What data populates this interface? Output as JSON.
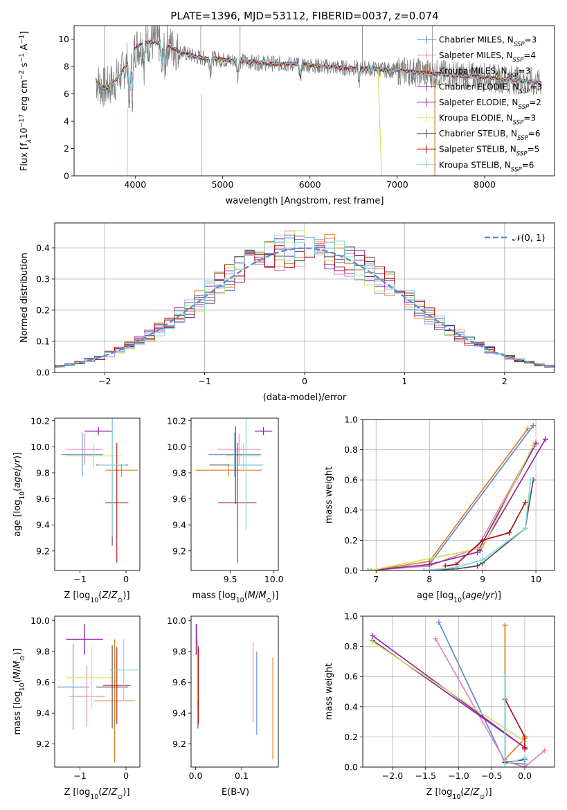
{
  "colors": {
    "chabrier_miles": "#5b8bd9",
    "salpeter_miles": "#e57fb8",
    "kroupa_miles": "#e07b1a",
    "chabrier_elodie": "#8c2a9e",
    "salpeter_elodie": "#9b22b0",
    "kroupa_elodie": "#c6e55a",
    "chabrier_stelib": "#4d4d4d",
    "salpeter_stelib": "#b01010",
    "kroupa_stelib": "#7fd9e0",
    "data": "#808080",
    "normal": "#5b8bd9",
    "grid": "#b0b0b0"
  },
  "legend_entries": [
    {
      "label": "Chabrier MILES, N",
      "sub": "SSP",
      "suffix": "=3",
      "color_key": "chabrier_miles"
    },
    {
      "label": "Salpeter MILES, N",
      "sub": "SSP",
      "suffix": "=4",
      "color_key": "salpeter_miles"
    },
    {
      "label": "Kroupa MILES, N",
      "sub": "SSP",
      "suffix": "=3",
      "color_key": "kroupa_miles"
    },
    {
      "label": "Chabrier ELODIE, N",
      "sub": "SSP",
      "suffix": "=3",
      "color_key": "chabrier_elodie"
    },
    {
      "label": "Salpeter ELODIE, N",
      "sub": "SSP",
      "suffix": "=2",
      "color_key": "salpeter_elodie"
    },
    {
      "label": "Kroupa ELODIE, N",
      "sub": "SSP",
      "suffix": "=3",
      "color_key": "kroupa_elodie"
    },
    {
      "label": "Chabrier STELIB, N",
      "sub": "SSP",
      "suffix": "=6",
      "color_key": "chabrier_stelib"
    },
    {
      "label": "Salpeter STELIB, N",
      "sub": "SSP",
      "suffix": "=5",
      "color_key": "salpeter_stelib"
    },
    {
      "label": "Kroupa STELIB, N",
      "sub": "SSP",
      "suffix": "=6",
      "color_key": "kroupa_stelib"
    }
  ],
  "chart_data": [
    {
      "id": "spectrum",
      "type": "line",
      "title": "PLATE=1396, MJD=53112, FIBERID=0037, z=0.074",
      "xlabel": "wavelength [Angstrom, rest frame]",
      "ylabel_parts": {
        "a": "Flux [f",
        "b": "λ",
        "c": "10",
        "d": "−17",
        "e": " erg cm",
        "f": "−2",
        "g": " s",
        "h": "−1",
        "i": " A",
        "j": "−1",
        "k": "]"
      },
      "xlim": [
        3300,
        8800
      ],
      "ylim": [
        0,
        11
      ],
      "xticks": [
        4000,
        5000,
        6000,
        7000,
        8000
      ],
      "yticks": [
        0,
        2,
        4,
        6,
        8,
        10
      ],
      "continuum": {
        "x": [
          3550,
          3600,
          3650,
          3700,
          3750,
          3800,
          3850,
          3900,
          3950,
          4000,
          4100,
          4200,
          4300,
          4400,
          4500,
          4600,
          4700,
          4800,
          4900,
          5000,
          5200,
          5400,
          5600,
          5800,
          6000,
          6200,
          6400,
          6600,
          6800,
          7000,
          7200,
          7400,
          7600,
          7800,
          8000,
          8200,
          8400,
          8600
        ],
        "y": [
          7.0,
          6.6,
          6.4,
          6.6,
          6.8,
          7.2,
          7.6,
          8.2,
          8.8,
          9.4,
          9.7,
          9.8,
          9.7,
          9.5,
          9.1,
          8.9,
          8.7,
          8.6,
          8.6,
          8.5,
          8.4,
          8.3,
          8.2,
          8.2,
          8.1,
          8.0,
          7.9,
          7.9,
          7.8,
          7.7,
          7.6,
          7.5,
          7.4,
          7.3,
          7.2,
          7.1,
          7.0,
          6.8
        ]
      },
      "absorption_lines": [
        {
          "x": 3934,
          "depth": 3.5
        },
        {
          "x": 3969,
          "depth": 3.0
        },
        {
          "x": 4102,
          "depth": 1.5
        },
        {
          "x": 4304,
          "depth": 2.0
        },
        {
          "x": 4340,
          "depth": 1.5
        },
        {
          "x": 4861,
          "depth": 1.0
        },
        {
          "x": 5175,
          "depth": 1.0
        },
        {
          "x": 5890,
          "depth": 1.0
        },
        {
          "x": 6563,
          "depth": 1.0
        }
      ]
    },
    {
      "id": "residuals",
      "type": "histogram",
      "xlabel": "(data-model)/error",
      "ylabel": "Normed distribution",
      "xlim": [
        -2.5,
        2.5
      ],
      "ylim": [
        0,
        0.48
      ],
      "xticks": [
        -2,
        -1,
        0,
        1,
        2
      ],
      "yticks": [
        0.0,
        0.1,
        0.2,
        0.3,
        0.4
      ],
      "legend_label": "𝒩(0, 1)",
      "legend_placement": "top-right",
      "bin_width": 0.1,
      "mu": 0,
      "sigma": 1
    },
    {
      "id": "age_vs_Z",
      "type": "errorbar",
      "xlabel_main": "Z [log",
      "xlabel_sub": "10",
      "xlabel_tail": "(Z/Z",
      "xlabel_sun": "⊙",
      "xlabel_end": ")]",
      "ylabel_main": "age  [log",
      "ylabel_sub": "10",
      "ylabel_tail": "(age/yr)]",
      "xlim": [
        -1.55,
        0.3
      ],
      "ylim": [
        9.05,
        10.22
      ],
      "xticks": [
        -1,
        0
      ],
      "yticks": [
        9.2,
        9.4,
        9.6,
        9.8,
        10.0,
        10.2
      ],
      "points": [
        {
          "key": "chabrier_miles",
          "x": -0.95,
          "xerr": 0.45,
          "y": 9.94,
          "yerr": 0.17
        },
        {
          "key": "salpeter_miles",
          "x": -0.9,
          "xerr": 0.4,
          "y": 9.98,
          "yerr": 0.12
        },
        {
          "key": "kroupa_miles",
          "x": -0.1,
          "xerr": 0.35,
          "y": 9.82,
          "yerr": 0.05
        },
        {
          "key": "chabrier_elodie",
          "x": -0.6,
          "xerr": 0.3,
          "y": 10.12,
          "yerr": 0.03
        },
        {
          "key": "salpeter_elodie",
          "x": -0.6,
          "xerr": 0.3,
          "y": 10.12,
          "yerr": 0.03
        },
        {
          "key": "kroupa_elodie",
          "x": -0.7,
          "xerr": 0.6,
          "y": 9.93,
          "yerr": 0.1
        },
        {
          "key": "chabrier_stelib",
          "x": -0.3,
          "xerr": 0.35,
          "y": 9.86,
          "yerr": 0.62
        },
        {
          "key": "salpeter_stelib",
          "x": -0.2,
          "xerr": 0.25,
          "y": 9.57,
          "yerr": 0.46
        },
        {
          "key": "kroupa_stelib",
          "x": -0.3,
          "xerr": 0.3,
          "y": 9.86,
          "yerr": 0.55
        }
      ]
    },
    {
      "id": "age_vs_mass",
      "type": "errorbar",
      "xlabel_main": "mass [log",
      "xlabel_sub": "10",
      "xlabel_tail": "(M/M",
      "xlabel_sun": "⊙",
      "xlabel_end": ")]",
      "xlim": [
        9.05,
        10.05
      ],
      "ylim": [
        9.05,
        10.22
      ],
      "xticks": [
        9.5,
        10.0
      ],
      "yticks": [
        9.2,
        9.4,
        9.6,
        9.8,
        10.0,
        10.2
      ],
      "points": [
        {
          "key": "chabrier_miles",
          "x": 9.55,
          "xerr": 0.3,
          "y": 9.94,
          "yerr": 0.17
        },
        {
          "key": "salpeter_miles",
          "x": 9.6,
          "xerr": 0.25,
          "y": 9.98,
          "yerr": 0.12
        },
        {
          "key": "kroupa_miles",
          "x": 9.48,
          "xerr": 0.38,
          "y": 9.82,
          "yerr": 0.05
        },
        {
          "key": "chabrier_elodie",
          "x": 9.88,
          "xerr": 0.1,
          "y": 10.12,
          "yerr": 0.03
        },
        {
          "key": "salpeter_elodie",
          "x": 9.88,
          "xerr": 0.1,
          "y": 10.12,
          "yerr": 0.03
        },
        {
          "key": "kroupa_elodie",
          "x": 9.65,
          "xerr": 0.2,
          "y": 9.93,
          "yerr": 0.1
        },
        {
          "key": "chabrier_stelib",
          "x": 9.56,
          "xerr": 0.3,
          "y": 9.86,
          "yerr": 0.3
        },
        {
          "key": "salpeter_stelib",
          "x": 9.58,
          "xerr": 0.22,
          "y": 9.57,
          "yerr": 0.46
        },
        {
          "key": "kroupa_stelib",
          "x": 9.68,
          "xerr": 0.2,
          "y": 9.86,
          "yerr": 0.5
        }
      ]
    },
    {
      "id": "weight_vs_age",
      "type": "line",
      "xlabel_main": "age  [log",
      "xlabel_sub": "10",
      "xlabel_tail": "(age/yr)]",
      "ylabel": "mass weight",
      "xlim": [
        6.75,
        10.35
      ],
      "ylim": [
        0,
        1.0
      ],
      "xticks": [
        7,
        8,
        9,
        10
      ],
      "yticks": [
        0.0,
        0.2,
        0.4,
        0.6,
        0.8,
        1.0
      ],
      "series": [
        {
          "key": "chabrier_miles",
          "x": [
            6.85,
            8.0,
            9.95
          ],
          "y": [
            0.0,
            0.04,
            0.96
          ]
        },
        {
          "key": "salpeter_miles",
          "x": [
            6.9,
            8.0,
            8.9,
            10.0
          ],
          "y": [
            0.0,
            0.03,
            0.15,
            0.85
          ]
        },
        {
          "key": "kroupa_miles",
          "x": [
            6.9,
            8.0,
            9.85
          ],
          "y": [
            0.0,
            0.06,
            0.94
          ]
        },
        {
          "key": "chabrier_elodie",
          "x": [
            6.9,
            8.0,
            8.9,
            10.0
          ],
          "y": [
            0.0,
            0.04,
            0.12,
            0.84
          ]
        },
        {
          "key": "salpeter_elodie",
          "x": [
            8.95,
            10.18
          ],
          "y": [
            0.13,
            0.87
          ]
        },
        {
          "key": "kroupa_elodie",
          "x": [
            6.9,
            9.0,
            9.95
          ],
          "y": [
            0.0,
            0.15,
            0.83
          ]
        },
        {
          "key": "chabrier_stelib",
          "x": [
            7.9,
            8.5,
            8.9,
            9.0,
            9.8,
            9.95
          ],
          "y": [
            0.0,
            0.01,
            0.03,
            0.05,
            0.28,
            0.6
          ]
        },
        {
          "key": "salpeter_stelib",
          "x": [
            8.3,
            8.5,
            9.0,
            9.5,
            9.8
          ],
          "y": [
            0.03,
            0.04,
            0.2,
            0.25,
            0.45
          ]
        },
        {
          "key": "kroupa_stelib",
          "x": [
            7.9,
            8.5,
            9.0,
            9.8,
            9.9
          ],
          "y": [
            0.0,
            0.02,
            0.07,
            0.28,
            0.6
          ]
        }
      ]
    },
    {
      "id": "mass_vs_Z",
      "type": "errorbar",
      "xlabel_main": "Z [log",
      "xlabel_sub": "10",
      "xlabel_tail": "(Z/Z",
      "xlabel_sun": "⊙",
      "xlabel_end": ")]",
      "ylabel_main": "mass [log",
      "ylabel_sub": "10",
      "ylabel_tail": "(M/M",
      "ylabel_sun": "⊙",
      "ylabel_end": ")]",
      "xlim": [
        -1.55,
        0.3
      ],
      "ylim": [
        9.05,
        10.03
      ],
      "xticks": [
        -1,
        0
      ],
      "yticks": [
        9.2,
        9.4,
        9.6,
        9.8,
        10.0
      ],
      "points": [
        {
          "key": "chabrier_miles",
          "x": -1.15,
          "xerr": 0.35,
          "y": 9.57,
          "yerr": 0.28
        },
        {
          "key": "salpeter_miles",
          "x": -0.85,
          "xerr": 0.4,
          "y": 9.51,
          "yerr": 0.2
        },
        {
          "key": "kroupa_miles",
          "x": -0.25,
          "xerr": 0.45,
          "y": 9.48,
          "yerr": 0.4
        },
        {
          "key": "chabrier_elodie",
          "x": -0.9,
          "xerr": 0.4,
          "y": 9.88,
          "yerr": 0.1
        },
        {
          "key": "salpeter_elodie",
          "x": -0.9,
          "xerr": 0.4,
          "y": 9.88,
          "yerr": 0.1
        },
        {
          "key": "kroupa_elodie",
          "x": -0.75,
          "xerr": 0.55,
          "y": 9.63,
          "yerr": 0.2
        },
        {
          "key": "chabrier_stelib",
          "x": -0.3,
          "xerr": 0.35,
          "y": 9.57,
          "yerr": 0.27
        },
        {
          "key": "salpeter_stelib",
          "x": -0.2,
          "xerr": 0.3,
          "y": 9.58,
          "yerr": 0.25
        },
        {
          "key": "kroupa_stelib",
          "x": -0.05,
          "xerr": 0.3,
          "y": 9.68,
          "yerr": 0.2
        }
      ]
    },
    {
      "id": "mass_vs_EBV",
      "type": "errorbar",
      "xlabel": "E(B-V)",
      "xlim": [
        -0.01,
        0.18
      ],
      "ylim": [
        9.05,
        10.03
      ],
      "xticks": [
        0.0,
        0.1
      ],
      "yticks": [
        9.2,
        9.4,
        9.6,
        9.8,
        10.0
      ],
      "points": [
        {
          "key": "chabrier_miles",
          "x": 0.133,
          "xerr": 0,
          "y": 9.53,
          "yerr": 0.27
        },
        {
          "key": "salpeter_miles",
          "x": 0.125,
          "xerr": 0,
          "y": 9.6,
          "yerr": 0.26
        },
        {
          "key": "kroupa_miles",
          "x": 0.168,
          "xerr": 0,
          "y": 9.43,
          "yerr": 0.33
        },
        {
          "key": "chabrier_elodie",
          "x": 0.002,
          "xerr": 0,
          "y": 9.88,
          "yerr": 0.1
        },
        {
          "key": "salpeter_elodie",
          "x": 0.001,
          "xerr": 0,
          "y": 9.88,
          "yerr": 0.1
        },
        {
          "key": "kroupa_elodie",
          "x": 0.003,
          "xerr": 0,
          "y": 9.65,
          "yerr": 0.2
        },
        {
          "key": "chabrier_stelib",
          "x": 0.005,
          "xerr": 0,
          "y": 9.57,
          "yerr": 0.27
        },
        {
          "key": "salpeter_stelib",
          "x": 0.006,
          "xerr": 0,
          "y": 9.58,
          "yerr": 0.25
        },
        {
          "key": "kroupa_stelib",
          "x": 0.004,
          "xerr": 0,
          "y": 9.68,
          "yerr": 0.2
        }
      ]
    },
    {
      "id": "weight_vs_Z",
      "type": "line",
      "xlabel_main": "Z [log",
      "xlabel_sub": "10",
      "xlabel_tail": "(Z/Z",
      "xlabel_sun": "⊙",
      "xlabel_end": ")]",
      "ylabel": "mass weight",
      "xlim": [
        -2.45,
        0.45
      ],
      "ylim": [
        0,
        1.0
      ],
      "xticks": [
        -2.0,
        -1.5,
        -1.0,
        -0.5,
        0.0
      ],
      "yticks": [
        0.0,
        0.2,
        0.4,
        0.6,
        0.8,
        1.0
      ],
      "series": [
        {
          "key": "chabrier_miles",
          "x": [
            -1.3,
            -0.3,
            0.0
          ],
          "y": [
            0.96,
            0.03,
            0.02
          ]
        },
        {
          "key": "salpeter_miles",
          "x": [
            -1.35,
            -0.3,
            0.0,
            0.3
          ],
          "y": [
            0.85,
            0.04,
            0.0,
            0.11
          ]
        },
        {
          "key": "kroupa_miles",
          "x": [
            -0.3,
            -0.3,
            0.0
          ],
          "y": [
            0.94,
            0.05,
            0.19
          ]
        },
        {
          "key": "chabrier_elodie",
          "x": [
            -2.3,
            0.0
          ],
          "y": [
            0.84,
            0.13
          ]
        },
        {
          "key": "salpeter_elodie",
          "x": [
            -2.3,
            0.0
          ],
          "y": [
            0.87,
            0.13
          ]
        },
        {
          "key": "kroupa_elodie",
          "x": [
            -2.3,
            0.0
          ],
          "y": [
            0.83,
            0.17
          ]
        },
        {
          "key": "chabrier_stelib",
          "x": [
            -0.3,
            -0.3,
            0.0
          ],
          "y": [
            0.6,
            0.03,
            0.05
          ]
        },
        {
          "key": "salpeter_stelib",
          "x": [
            -0.3,
            0.0,
            0.0
          ],
          "y": [
            0.45,
            0.2,
            0.12
          ]
        },
        {
          "key": "kroupa_stelib",
          "x": [
            -0.3,
            -0.3,
            0.0
          ],
          "y": [
            0.6,
            0.02,
            0.06
          ]
        }
      ]
    }
  ]
}
